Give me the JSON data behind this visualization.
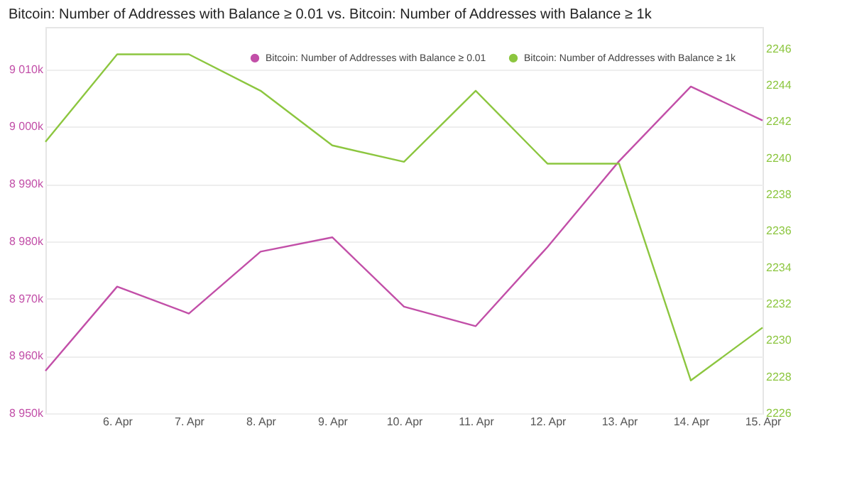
{
  "chart_data": {
    "type": "line",
    "title": "Bitcoin: Number of Addresses with Balance ≥ 0.01 vs. Bitcoin: Number of Addresses with Balance ≥ 1k",
    "categories": [
      null,
      "6. Apr",
      "7. Apr",
      "8. Apr",
      "9. Apr",
      "10. Apr",
      "11. Apr",
      "12. Apr",
      "13. Apr",
      "14. Apr",
      "15. Apr"
    ],
    "series": [
      {
        "name": "Bitcoin: Number of Addresses with Balance ≥ 0.01",
        "color": "#c24fa8",
        "axis": "y",
        "values": [
          8957.4,
          8972.1,
          8967.4,
          8978.2,
          8980.7,
          8968.6,
          8965.2,
          8979,
          8994,
          9007,
          9001.1
        ]
      },
      {
        "name": "Bitcoin: Number of Addresses with Balance ≥ 1k",
        "color": "#8cc63f",
        "axis": "y2",
        "values": [
          2240.9,
          2245.7,
          2245.7,
          2243.7,
          2240.7,
          2239.8,
          2243.7,
          2239.7,
          2239.7,
          2227.8,
          2230.7
        ]
      }
    ],
    "ylim": [
      8950,
      9017.4
    ],
    "yticks": [
      {
        "value": 8950,
        "label": "8 950k"
      },
      {
        "value": 8960,
        "label": "8 960k"
      },
      {
        "value": 8970,
        "label": "8 970k"
      },
      {
        "value": 8980,
        "label": "8 980k"
      },
      {
        "value": 8990,
        "label": "8 990k"
      },
      {
        "value": 9000,
        "label": "9 000k"
      },
      {
        "value": 9010,
        "label": "9 010k"
      }
    ],
    "y2lim": [
      2226,
      2247.2
    ],
    "y2ticks": [
      2226,
      2228,
      2230,
      2232,
      2234,
      2236,
      2238,
      2240,
      2242,
      2244,
      2246
    ],
    "grid": "y",
    "legend": "top right",
    "marker": "none",
    "line_style": "solid"
  }
}
